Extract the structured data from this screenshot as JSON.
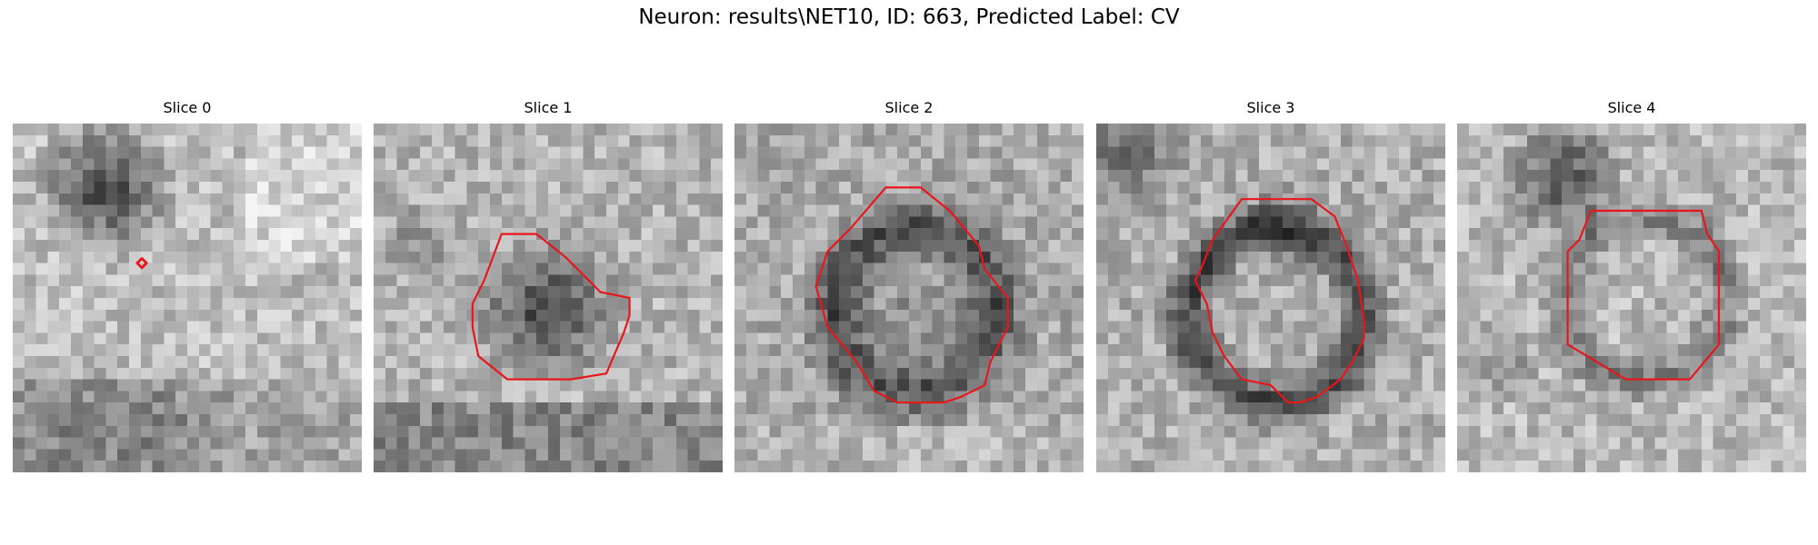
{
  "figure": {
    "title": "Neuron: results\\NET10, ID: 663, Predicted Label: CV"
  },
  "panels": [
    {
      "title": "Slice 0"
    },
    {
      "title": "Slice 1"
    },
    {
      "title": "Slice 2"
    },
    {
      "title": "Slice 3"
    },
    {
      "title": "Slice 4"
    }
  ],
  "colors": {
    "contour": "#e8161c",
    "background": "#ffffff"
  }
}
